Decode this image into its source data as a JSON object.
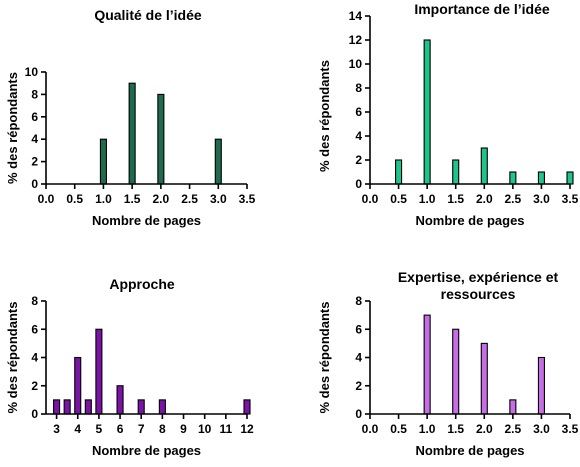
{
  "chart_data": [
    {
      "type": "bar",
      "title_lines": [
        "Qualité de l’idée"
      ],
      "xlabel": "Nombre de pages",
      "ylabel": "% des répondants",
      "color": "#1e6b4e",
      "x_ticks": [
        "0.0",
        "0.5",
        "1.0",
        "1.5",
        "2.0",
        "2.5",
        "3.0",
        "3.5"
      ],
      "y_ticks": [
        "0",
        "2",
        "4",
        "6",
        "8",
        "10"
      ],
      "xlim": [
        0,
        3.5
      ],
      "ylim": [
        0,
        10
      ],
      "bars": [
        {
          "x": 1.0,
          "value": 4
        },
        {
          "x": 1.5,
          "value": 9
        },
        {
          "x": 2.0,
          "value": 8
        },
        {
          "x": 3.0,
          "value": 4
        }
      ]
    },
    {
      "type": "bar",
      "title_lines": [
        "Importance de l’idée"
      ],
      "xlabel": "Nombre de pages",
      "ylabel": "% des répondants",
      "color": "#1ec489",
      "x_ticks": [
        "0.0",
        "0.5",
        "1.0",
        "1.5",
        "2.0",
        "2.5",
        "3.0",
        "3.5"
      ],
      "y_ticks": [
        "0",
        "2",
        "4",
        "6",
        "8",
        "10",
        "12",
        "14"
      ],
      "xlim": [
        0,
        3.5
      ],
      "ylim": [
        0,
        14
      ],
      "bars": [
        {
          "x": 0.5,
          "value": 2
        },
        {
          "x": 1.0,
          "value": 12
        },
        {
          "x": 1.5,
          "value": 2
        },
        {
          "x": 2.0,
          "value": 3
        },
        {
          "x": 2.5,
          "value": 1
        },
        {
          "x": 3.0,
          "value": 1
        },
        {
          "x": 3.5,
          "value": 1
        }
      ]
    },
    {
      "type": "bar",
      "title_lines": [
        "Approche"
      ],
      "xlabel": "Nombre de pages",
      "ylabel": "% des répondants",
      "color": "#7a13a6",
      "x_ticks": [
        "3",
        "4",
        "5",
        "6",
        "7",
        "8",
        "9",
        "10",
        "11",
        "12"
      ],
      "y_ticks": [
        "0",
        "2",
        "4",
        "6",
        "8"
      ],
      "xlim": [
        2.5,
        12
      ],
      "ylim": [
        0,
        8
      ],
      "bars": [
        {
          "x": 3.0,
          "value": 1
        },
        {
          "x": 3.5,
          "value": 1
        },
        {
          "x": 4.0,
          "value": 4
        },
        {
          "x": 4.5,
          "value": 1
        },
        {
          "x": 5.0,
          "value": 6
        },
        {
          "x": 6.0,
          "value": 2
        },
        {
          "x": 7.0,
          "value": 1
        },
        {
          "x": 8.0,
          "value": 1
        },
        {
          "x": 12.0,
          "value": 1
        }
      ]
    },
    {
      "type": "bar",
      "title_lines": [
        "Expertise, expérience et",
        "ressources"
      ],
      "xlabel": "Nombre de pages",
      "ylabel": "% des répondants",
      "color": "#c76ee6",
      "x_ticks": [
        "0.0",
        "0.5",
        "1.0",
        "1.5",
        "2.0",
        "2.5",
        "3.0",
        "3.5"
      ],
      "y_ticks": [
        "0",
        "2",
        "4",
        "6",
        "8"
      ],
      "xlim": [
        0,
        3.5
      ],
      "ylim": [
        0,
        8
      ],
      "bars": [
        {
          "x": 1.0,
          "value": 7
        },
        {
          "x": 1.5,
          "value": 6
        },
        {
          "x": 2.0,
          "value": 5
        },
        {
          "x": 2.5,
          "value": 1
        },
        {
          "x": 3.0,
          "value": 4
        }
      ]
    }
  ]
}
